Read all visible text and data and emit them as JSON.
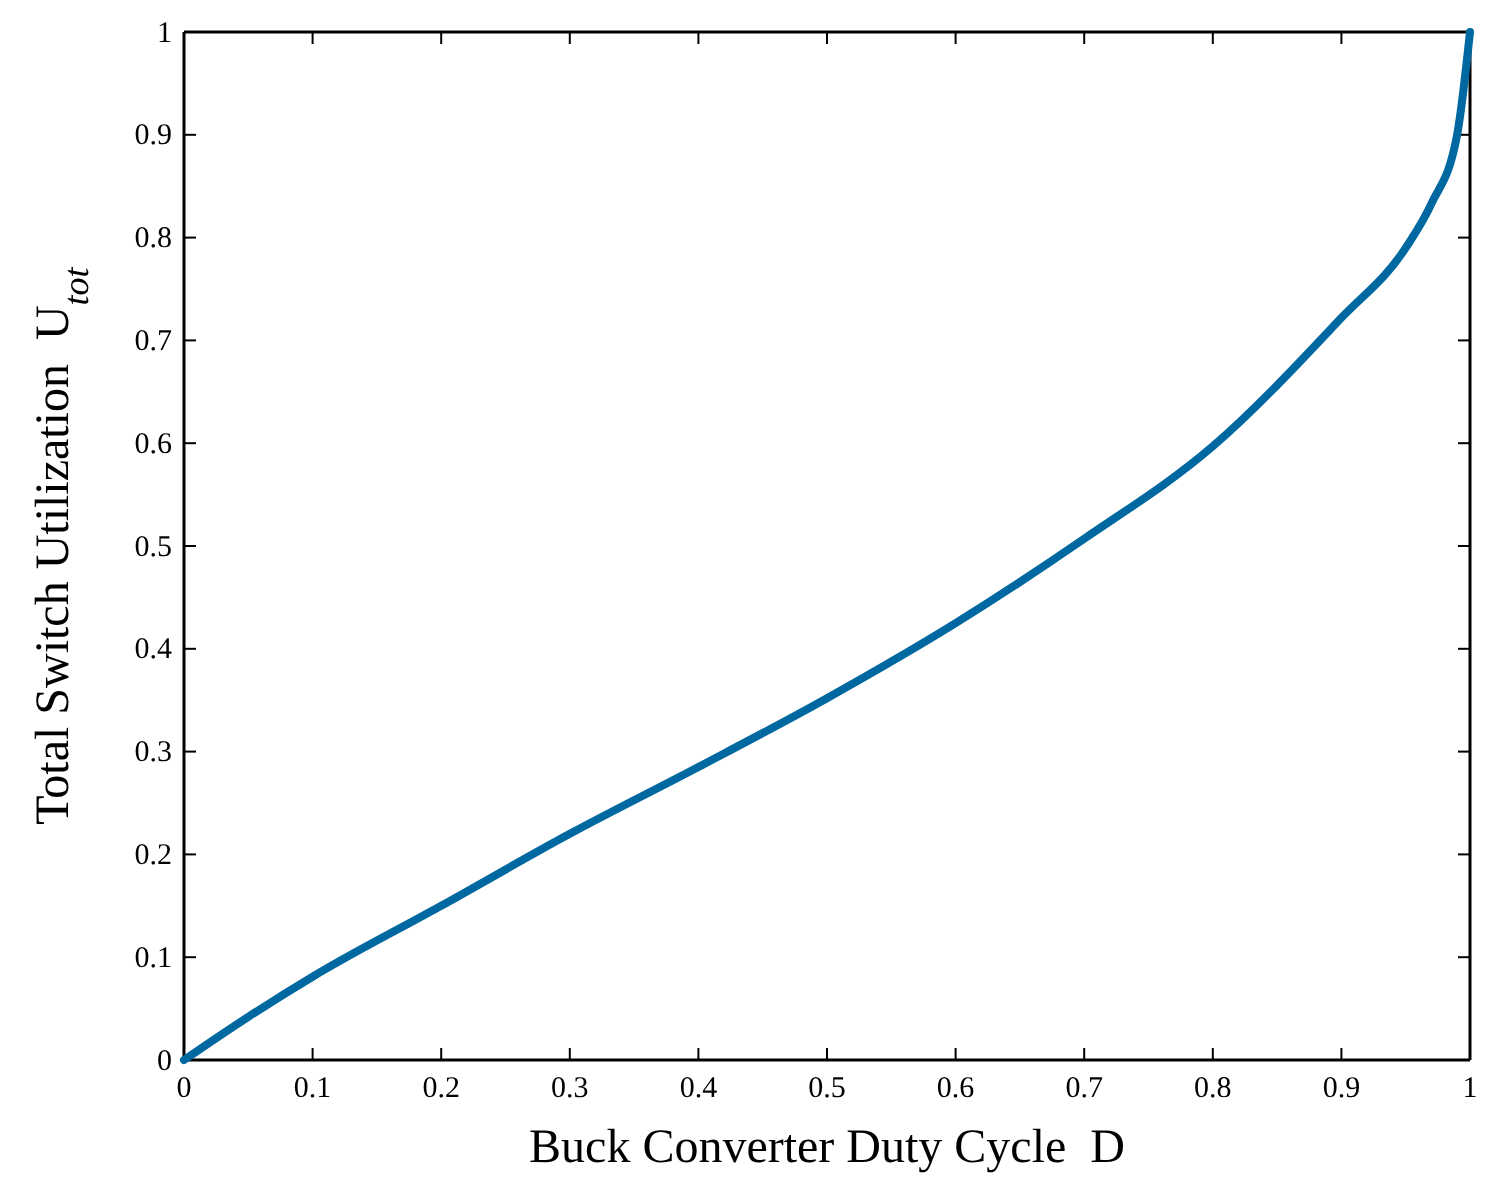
{
  "chart_data": {
    "type": "line",
    "xlabel": "Buck Converter Duty Cycle  D",
    "ylabel": "Total Switch Utilization  U$_{tot}$",
    "x": [
      0,
      0.05,
      0.1,
      0.2,
      0.3,
      0.4,
      0.5,
      0.6,
      0.7,
      0.8,
      0.9,
      0.95,
      0.97,
      0.99,
      1
    ],
    "series": [
      {
        "color": "#0068a0",
        "values": [
          0,
          0.042,
          0.081,
          0.15,
          0.22,
          0.285,
          0.352,
          0.425,
          0.507,
          0.597,
          0.722,
          0.79,
          0.833,
          0.9,
          1
        ]
      }
    ],
    "xlim": [
      0,
      1
    ],
    "ylim": [
      0,
      1
    ],
    "xticks": [
      0,
      0.1,
      0.2,
      0.3,
      0.4,
      0.5,
      0.6,
      0.7,
      0.8,
      0.9,
      1
    ],
    "yticks": [
      0,
      0.1,
      0.2,
      0.3,
      0.4,
      0.5,
      0.6,
      0.7,
      0.8,
      0.9,
      1
    ],
    "grid": false,
    "marker": "none",
    "line_style": "solid"
  }
}
